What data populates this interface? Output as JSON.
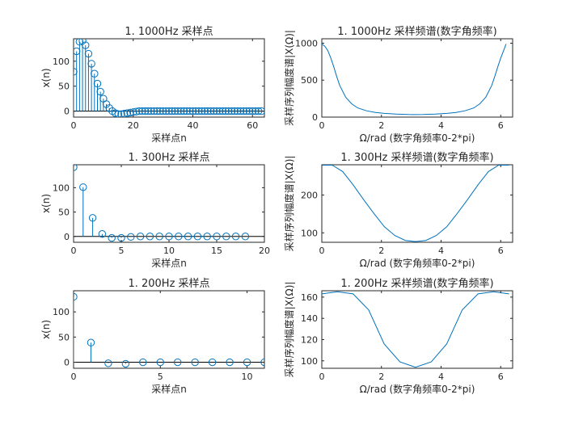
{
  "chart_data": [
    {
      "type": "stem",
      "title": "1. 1000Hz 采样点",
      "xlabel": "采样点n",
      "ylabel": "x(n)",
      "xlim": [
        0,
        64
      ],
      "ylim": [
        -12,
        145
      ],
      "xticks": [
        0,
        20,
        40,
        60
      ],
      "yticks": [
        0,
        50,
        100
      ],
      "x": [
        0,
        1,
        2,
        3,
        4,
        5,
        6,
        7,
        8,
        9,
        10,
        11,
        12,
        13,
        14,
        15,
        16,
        17,
        18,
        19,
        20,
        21,
        22,
        23,
        24,
        25,
        26,
        27,
        28,
        29,
        30,
        31,
        32,
        33,
        34,
        35,
        36,
        37,
        38,
        39,
        40,
        41,
        42,
        43,
        44,
        45,
        46,
        47,
        48,
        49,
        50,
        51,
        52,
        53,
        54,
        55,
        56,
        57,
        58,
        59,
        60,
        61,
        62,
        63
      ],
      "values": [
        79,
        120,
        139,
        141,
        132,
        115,
        95,
        75,
        55,
        39,
        25,
        14,
        6,
        0,
        -4,
        -6,
        -6,
        -5,
        -4,
        -3,
        -2,
        -1,
        0,
        0,
        0,
        0,
        0,
        0,
        0,
        0,
        0,
        0,
        0,
        0,
        0,
        0,
        0,
        0,
        0,
        0,
        0,
        0,
        0,
        0,
        0,
        0,
        0,
        0,
        0,
        0,
        0,
        0,
        0,
        0,
        0,
        0,
        0,
        0,
        0,
        0,
        0,
        0,
        0,
        0
      ]
    },
    {
      "type": "line",
      "title": "1. 1000Hz 采样频谱(数字角频率)",
      "xlabel": "Ω/rad (数字角频率0-2*pi)",
      "ylabel": "采样序列幅度谱|X(Ω)|",
      "xlim": [
        0,
        6.4
      ],
      "ylim": [
        0,
        1060
      ],
      "xticks": [
        0,
        2,
        4,
        6
      ],
      "yticks": [
        0,
        500,
        1000
      ],
      "x": [
        0,
        0.1,
        0.2,
        0.3,
        0.4,
        0.5,
        0.6,
        0.8,
        1.0,
        1.2,
        1.5,
        1.8,
        2.1,
        2.5,
        2.9,
        3.14,
        3.4,
        3.8,
        4.2,
        4.5,
        4.8,
        5.1,
        5.3,
        5.5,
        5.7,
        5.8,
        5.9,
        6.0,
        6.1,
        6.18
      ],
      "values": [
        990,
        960,
        900,
        800,
        680,
        550,
        430,
        270,
        180,
        125,
        85,
        62,
        50,
        40,
        35,
        34,
        35,
        40,
        50,
        62,
        85,
        125,
        180,
        270,
        430,
        550,
        680,
        800,
        900,
        990
      ]
    },
    {
      "type": "stem",
      "title": "1. 300Hz 采样点",
      "xlabel": "采样点n",
      "ylabel": "x(n)",
      "xlim": [
        0,
        20
      ],
      "ylim": [
        -12,
        147
      ],
      "xticks": [
        0,
        5,
        10,
        15,
        20
      ],
      "yticks": [
        0,
        50,
        100
      ],
      "x": [
        0,
        1,
        2,
        3,
        4,
        5,
        6,
        7,
        8,
        9,
        10,
        11,
        12,
        13,
        14,
        15,
        16,
        17,
        18
      ],
      "values": [
        142,
        101,
        38,
        5,
        -3,
        -3,
        -1,
        0,
        0,
        0,
        0,
        0,
        0,
        0,
        0,
        0,
        0,
        0,
        0
      ]
    },
    {
      "type": "line",
      "title": "1. 300Hz 采样频谱(数字角频率)",
      "xlabel": "Ω/rad (数字角频率0-2*pi)",
      "ylabel": "采样序列幅度谱|X(Ω)|",
      "xlim": [
        0,
        6.4
      ],
      "ylim": [
        75,
        280
      ],
      "xticks": [
        0,
        2,
        4,
        6
      ],
      "yticks": [
        100,
        200
      ],
      "x": [
        0,
        0.35,
        0.7,
        1.05,
        1.4,
        1.75,
        2.1,
        2.45,
        2.8,
        3.14,
        3.49,
        3.84,
        4.19,
        4.54,
        4.89,
        5.24,
        5.59,
        5.93,
        6.28
      ],
      "values": [
        279,
        279,
        262,
        227,
        188,
        151,
        116,
        93,
        80,
        77,
        80,
        93,
        116,
        151,
        188,
        227,
        262,
        279,
        279
      ]
    },
    {
      "type": "stem",
      "title": "1. 200Hz 采样点",
      "xlabel": "采样点n",
      "ylabel": "x(n)",
      "xlim": [
        0,
        11
      ],
      "ylim": [
        -12,
        142
      ],
      "xticks": [
        0,
        5,
        10
      ],
      "yticks": [
        0,
        50,
        100
      ],
      "x": [
        0,
        1,
        2,
        3,
        4,
        5,
        6,
        7,
        8,
        9,
        10,
        11
      ],
      "values": [
        130,
        39,
        -2,
        -3,
        0,
        0,
        0,
        0,
        0,
        0,
        0,
        0
      ]
    },
    {
      "type": "line",
      "title": "1. 200Hz 采样频谱(数字角频率)",
      "xlabel": "Ω/rad (数字角频率0-2*pi)",
      "ylabel": "采样序列幅度谱|X(Ω)|",
      "xlim": [
        0,
        6.4
      ],
      "ylim": [
        93,
        166
      ],
      "xticks": [
        0,
        2,
        4,
        6
      ],
      "yticks": [
        100,
        120,
        140,
        160
      ],
      "x": [
        0,
        0.52,
        1.05,
        1.57,
        2.09,
        2.62,
        3.14,
        3.67,
        4.19,
        4.71,
        5.24,
        5.76,
        6.28
      ],
      "values": [
        163,
        165,
        163,
        148,
        116,
        99,
        94,
        99,
        116,
        148,
        163,
        165,
        163
      ]
    }
  ],
  "style": {
    "line_color": "#0072BD",
    "axis_color": "#262626",
    "baseline_color": "#000000"
  }
}
